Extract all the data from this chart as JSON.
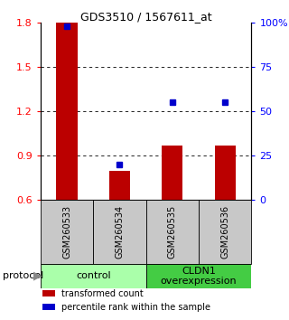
{
  "title": "GDS3510 / 1567611_at",
  "samples": [
    "GSM260533",
    "GSM260534",
    "GSM260535",
    "GSM260536"
  ],
  "transformed_counts": [
    1.8,
    0.8,
    0.97,
    0.97
  ],
  "percentile_ranks": [
    98,
    20,
    55,
    55
  ],
  "ylim_left": [
    0.6,
    1.8
  ],
  "ylim_right": [
    0,
    100
  ],
  "yticks_left": [
    0.6,
    0.9,
    1.2,
    1.5,
    1.8
  ],
  "yticks_right": [
    0,
    25,
    50,
    75,
    100
  ],
  "ytick_labels_right": [
    "0",
    "25",
    "50",
    "75",
    "100%"
  ],
  "bar_color": "#BB0000",
  "percentile_color": "#0000CC",
  "sample_box_color": "#C8C8C8",
  "group1_color": "#AAFFAA",
  "group2_color": "#44CC44",
  "group1_label": "control",
  "group2_label": "CLDN1\noverexpression",
  "protocol_label": "protocol",
  "legend_items": [
    {
      "color": "#BB0000",
      "label": "transformed count"
    },
    {
      "color": "#0000CC",
      "label": "percentile rank within the sample"
    }
  ],
  "background_color": "#FFFFFF",
  "title_fontsize": 9,
  "tick_fontsize": 8,
  "sample_fontsize": 7,
  "legend_fontsize": 7,
  "proto_fontsize": 8
}
